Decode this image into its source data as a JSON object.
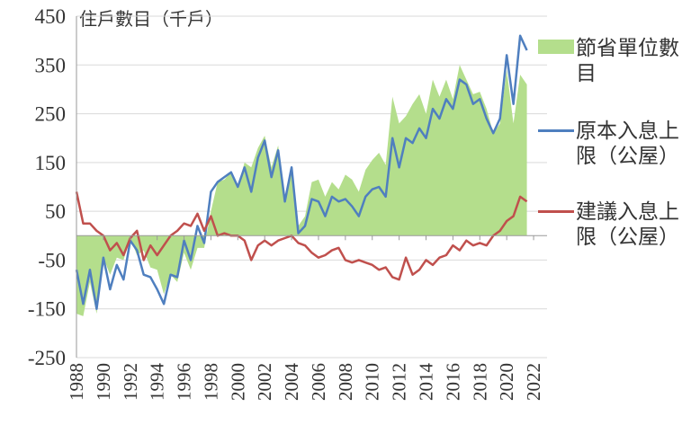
{
  "chart_data": {
    "type": "line",
    "y_label": "住戶數目（千戶）",
    "x": [
      1988,
      1988.5,
      1989,
      1989.5,
      1990,
      1990.5,
      1991,
      1991.5,
      1992,
      1992.5,
      1993,
      1993.5,
      1994,
      1994.5,
      1995,
      1995.5,
      1996,
      1996.5,
      1997,
      1997.5,
      1998,
      1998.5,
      1999,
      1999.5,
      2000,
      2000.5,
      2001,
      2001.5,
      2002,
      2002.5,
      2003,
      2003.5,
      2004,
      2004.5,
      2005,
      2005.5,
      2006,
      2006.5,
      2007,
      2007.5,
      2008,
      2008.5,
      2009,
      2009.5,
      2010,
      2010.5,
      2011,
      2011.5,
      2012,
      2012.5,
      2013,
      2013.5,
      2014,
      2014.5,
      2015,
      2015.5,
      2016,
      2016.5,
      2017,
      2017.5,
      2018,
      2018.5,
      2019,
      2019.5,
      2020,
      2020.5,
      2021,
      2021.5
    ],
    "series": [
      {
        "name": "節省單位數目",
        "kind": "area",
        "color": "#b4de8c",
        "values": [
          -160,
          -165,
          -95,
          -160,
          -45,
          -80,
          -45,
          -50,
          -5,
          -40,
          -30,
          -65,
          -70,
          -120,
          -80,
          -95,
          -35,
          -70,
          -25,
          -25,
          50,
          110,
          115,
          130,
          100,
          150,
          140,
          180,
          205,
          140,
          185,
          75,
          140,
          20,
          40,
          110,
          115,
          80,
          110,
          95,
          125,
          115,
          90,
          135,
          155,
          170,
          145,
          285,
          230,
          245,
          270,
          290,
          250,
          320,
          285,
          320,
          280,
          350,
          320,
          290,
          295,
          260,
          210,
          230,
          340,
          230,
          330,
          310
        ]
      },
      {
        "name": "原本入息上限（公屋）",
        "kind": "line",
        "color": "#4f7fbf",
        "values": [
          -70,
          -140,
          -70,
          -150,
          -45,
          -110,
          -60,
          -90,
          -10,
          -30,
          -80,
          -85,
          -110,
          -140,
          -80,
          -85,
          -10,
          -50,
          20,
          -15,
          90,
          110,
          120,
          130,
          100,
          140,
          90,
          160,
          195,
          120,
          175,
          70,
          140,
          5,
          20,
          75,
          70,
          40,
          80,
          70,
          75,
          60,
          40,
          80,
          95,
          100,
          80,
          200,
          140,
          200,
          190,
          220,
          200,
          260,
          240,
          280,
          260,
          320,
          310,
          270,
          280,
          240,
          210,
          240,
          370,
          270,
          410,
          380
        ]
      },
      {
        "name": "建議入息上限（公屋）",
        "kind": "line",
        "color": "#c0504d",
        "values": [
          90,
          25,
          25,
          10,
          0,
          -30,
          -15,
          -40,
          -5,
          10,
          -50,
          -20,
          -40,
          -20,
          0,
          10,
          25,
          20,
          45,
          10,
          40,
          0,
          5,
          0,
          0,
          -10,
          -50,
          -20,
          -10,
          -20,
          -10,
          -5,
          0,
          -15,
          -20,
          -35,
          -45,
          -40,
          -30,
          -25,
          -50,
          -55,
          -50,
          -55,
          -60,
          -70,
          -65,
          -85,
          -90,
          -45,
          -80,
          -70,
          -50,
          -60,
          -45,
          -40,
          -20,
          -30,
          -10,
          -20,
          -15,
          -20,
          0,
          10,
          30,
          40,
          80,
          70
        ]
      }
    ],
    "xlim": [
      1988,
      2023
    ],
    "xticks": [
      1988,
      1990,
      1992,
      1994,
      1996,
      1998,
      2000,
      2002,
      2004,
      2006,
      2008,
      2010,
      2012,
      2014,
      2016,
      2018,
      2020,
      2022
    ],
    "ylim": [
      -250,
      450
    ],
    "yticks": [
      -250,
      -150,
      -50,
      50,
      150,
      250,
      350,
      450
    ],
    "grid": true
  }
}
